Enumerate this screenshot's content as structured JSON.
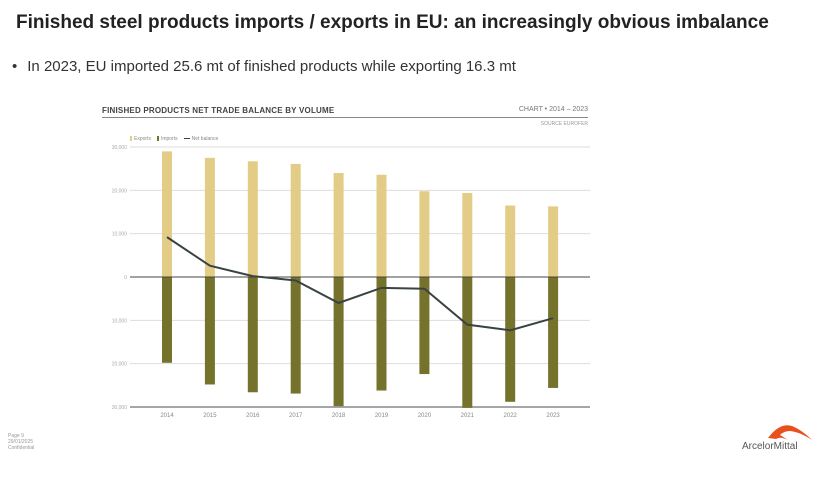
{
  "slide": {
    "title": "Finished steel products imports / exports in EU: an increasingly obvious imbalance",
    "bullet": "In 2023, EU imported 25.6 mt of finished products while exporting 16.3 mt",
    "footer": {
      "page": "Page 9",
      "date": "29/01/2025",
      "classification": "Confidential"
    },
    "logo": "ArcelorMittal"
  },
  "chart_data": {
    "type": "bar",
    "title": "FINISHED PRODUCTS NET TRADE BALANCE BY VOLUME",
    "subtitle": "CHART • 2014 – 2023",
    "source": "SOURCE EUROFER",
    "categories": [
      "2014",
      "2015",
      "2016",
      "2017",
      "2018",
      "2019",
      "2020",
      "2021",
      "2022",
      "2023"
    ],
    "series": [
      {
        "name": "Exports",
        "type": "bar",
        "color": "#e3cd86",
        "values": [
          29000,
          27500,
          26700,
          26100,
          24000,
          23600,
          19800,
          19400,
          16500,
          16300
        ]
      },
      {
        "name": "Imports",
        "type": "bar",
        "color": "#75722c",
        "values": [
          -19800,
          -24800,
          -26600,
          -26900,
          -29800,
          -26200,
          -22400,
          -30200,
          -28800,
          -25600
        ]
      },
      {
        "name": "Net balance",
        "type": "line",
        "color": "#3a4343",
        "values": [
          9200,
          2600,
          200,
          -800,
          -6000,
          -2500,
          -2700,
          -11000,
          -12300,
          -9500
        ]
      }
    ],
    "ylim": [
      -30000,
      30000
    ],
    "yticks": [
      30000,
      20000,
      10000,
      0,
      -10000,
      -20000,
      -30000
    ],
    "ytick_labels": [
      "30,000",
      "20,000",
      "10,000",
      "0",
      "10,000",
      "20,000",
      "30,000"
    ],
    "grid": true,
    "legend": "top-left"
  }
}
